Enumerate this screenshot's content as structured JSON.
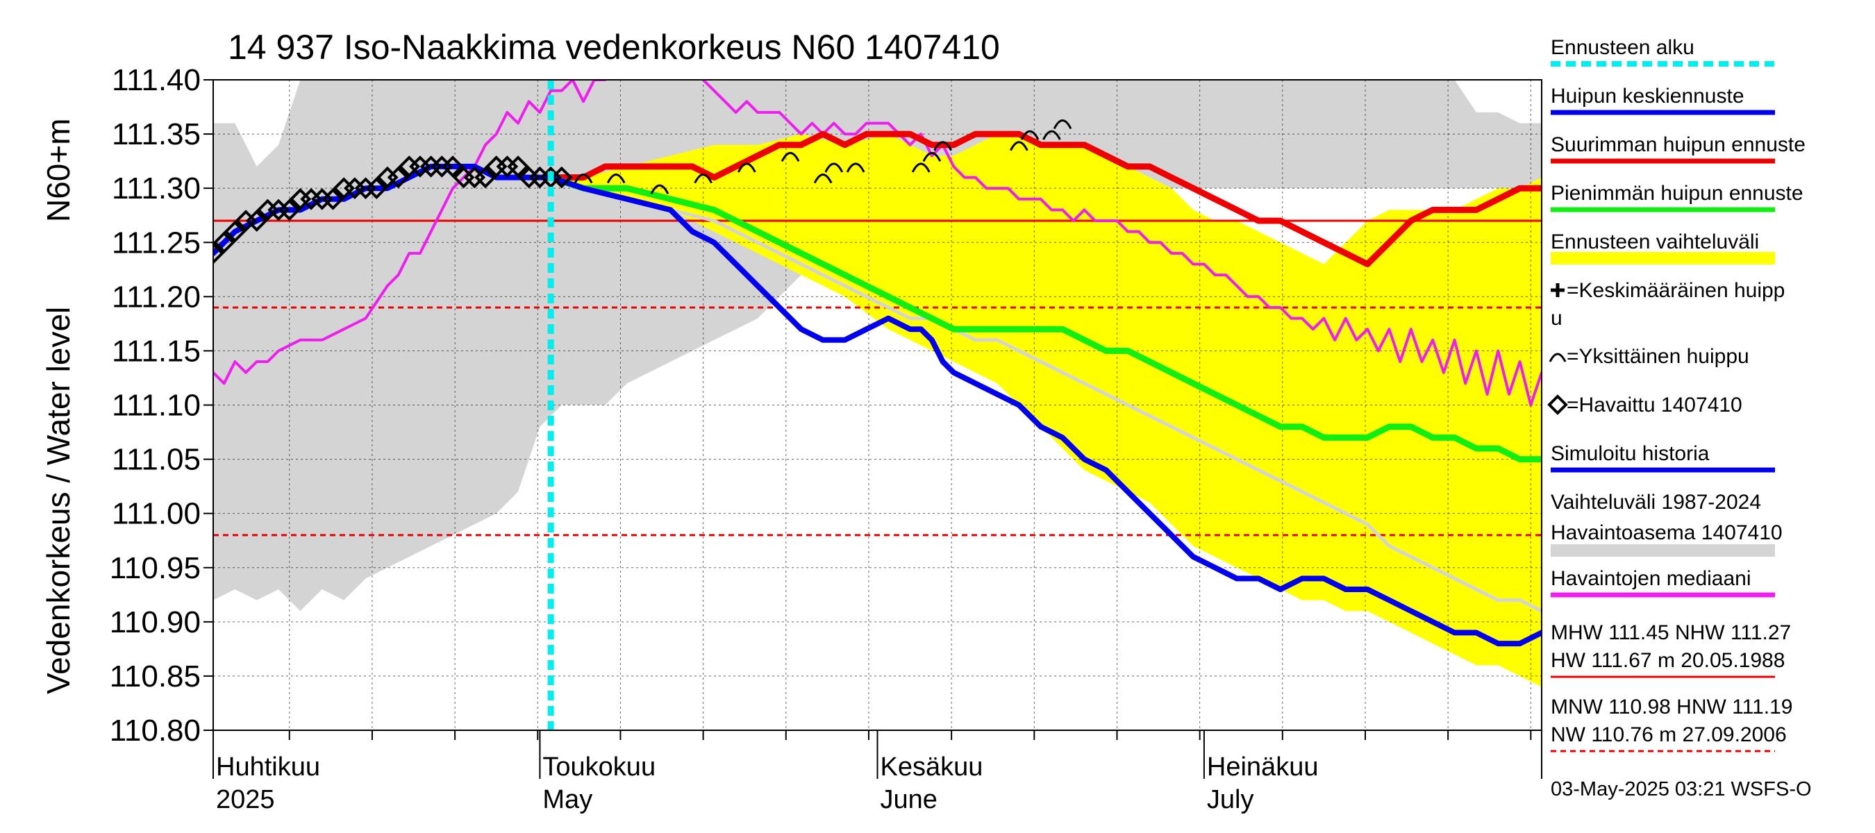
{
  "chart_data": {
    "type": "line",
    "title": "14 937 Iso-Naakkima vedenkorkeus N60 1407410",
    "ylabel_top": "N60+m",
    "ylabel_bottom": "Vedenkorkeus / Water level",
    "ylim": [
      110.8,
      111.4
    ],
    "xlim": [
      0,
      122
    ],
    "y_ticks": [
      "110.80",
      "110.85",
      "110.90",
      "110.95",
      "111.00",
      "111.05",
      "111.10",
      "111.15",
      "111.20",
      "111.25",
      "111.30",
      "111.35",
      "111.40"
    ],
    "grid": true,
    "legend_position": "right",
    "months": [
      {
        "fi": "Huhtikuu",
        "en": "2025",
        "day": 0
      },
      {
        "fi": "Toukokuu",
        "en": "May",
        "day": 30
      },
      {
        "fi": "Kesäkuu",
        "en": "June",
        "day": 61
      },
      {
        "fi": "Heinäkuu",
        "en": "July",
        "day": 91
      }
    ],
    "forecast_start_day": 31,
    "reference_lines": [
      {
        "label": "NHW",
        "value": 111.27,
        "style": "solid"
      },
      {
        "label": "HNW",
        "value": 111.19,
        "style": "dashed"
      },
      {
        "label": "MNW",
        "value": 110.98,
        "style": "dashed"
      }
    ],
    "history_band": {
      "x": [
        0,
        2,
        4,
        6,
        8,
        10,
        12,
        14,
        16,
        18,
        20,
        22,
        24,
        26,
        28,
        29,
        30,
        31,
        32,
        34,
        36,
        38,
        40,
        42,
        44,
        46,
        48,
        50,
        52,
        54,
        56,
        58,
        60,
        62,
        64,
        66,
        68,
        70,
        72,
        74,
        76,
        78,
        80,
        82,
        84,
        86,
        88,
        90,
        92,
        94,
        96,
        98,
        100,
        102,
        104,
        106,
        108,
        110,
        112,
        114,
        116,
        118,
        120,
        122
      ],
      "upper": [
        111.36,
        111.36,
        111.32,
        111.34,
        111.4,
        111.4,
        111.4,
        111.4,
        111.4,
        111.4,
        111.4,
        111.4,
        111.4,
        111.4,
        111.4,
        111.4,
        111.4,
        111.4,
        111.4,
        111.4,
        111.4,
        111.4,
        111.4,
        111.4,
        111.4,
        111.4,
        111.4,
        111.4,
        111.4,
        111.4,
        111.4,
        111.4,
        111.4,
        111.4,
        111.4,
        111.4,
        111.4,
        111.4,
        111.4,
        111.4,
        111.4,
        111.4,
        111.4,
        111.4,
        111.4,
        111.4,
        111.4,
        111.4,
        111.4,
        111.4,
        111.4,
        111.4,
        111.4,
        111.4,
        111.4,
        111.4,
        111.4,
        111.4,
        111.4,
        111.4,
        111.37,
        111.37,
        111.36,
        111.36
      ],
      "lower": [
        110.92,
        110.93,
        110.92,
        110.93,
        110.91,
        110.93,
        110.92,
        110.94,
        110.95,
        110.96,
        110.97,
        110.98,
        110.99,
        111.0,
        111.02,
        111.05,
        111.08,
        111.09,
        111.1,
        111.1,
        111.1,
        111.12,
        111.13,
        111.14,
        111.15,
        111.16,
        111.17,
        111.18,
        111.2,
        111.22,
        111.24,
        111.26,
        111.28,
        111.3,
        111.3,
        111.3,
        111.3,
        111.3,
        111.3,
        111.3,
        111.3,
        111.3,
        111.3,
        111.3,
        111.3,
        111.3,
        111.3,
        111.3,
        111.3,
        111.3,
        111.3,
        111.3,
        111.3,
        111.3,
        111.3,
        111.3,
        111.3,
        111.3,
        111.3,
        111.3,
        111.3,
        111.3,
        111.3,
        111.3
      ]
    },
    "forecast_band": {
      "x": [
        31,
        34,
        38,
        42,
        46,
        50,
        54,
        58,
        62,
        64,
        66,
        68,
        70,
        72,
        74,
        76,
        78,
        80,
        82,
        84,
        86,
        88,
        90,
        92,
        94,
        96,
        98,
        100,
        102,
        104,
        106,
        108,
        110,
        112,
        114,
        116,
        118,
        120,
        122
      ],
      "upper": [
        111.31,
        111.31,
        111.32,
        111.33,
        111.34,
        111.34,
        111.35,
        111.34,
        111.35,
        111.34,
        111.33,
        111.33,
        111.34,
        111.35,
        111.35,
        111.34,
        111.34,
        111.34,
        111.33,
        111.32,
        111.31,
        111.3,
        111.28,
        111.27,
        111.27,
        111.26,
        111.25,
        111.24,
        111.23,
        111.25,
        111.27,
        111.28,
        111.28,
        111.28,
        111.28,
        111.29,
        111.3,
        111.3,
        111.31
      ],
      "lower": [
        111.31,
        111.3,
        111.29,
        111.28,
        111.26,
        111.24,
        111.22,
        111.2,
        111.17,
        111.16,
        111.15,
        111.14,
        111.13,
        111.12,
        111.1,
        111.08,
        111.06,
        111.04,
        111.03,
        111.02,
        111.01,
        110.99,
        110.97,
        110.96,
        110.95,
        110.94,
        110.93,
        110.92,
        110.92,
        110.91,
        110.91,
        110.9,
        110.89,
        110.88,
        110.87,
        110.86,
        110.86,
        110.85,
        110.84
      ]
    },
    "series": [
      {
        "name": "Havaintojen mediaani",
        "color": "#ee1fee",
        "x": [
          0,
          1,
          2,
          3,
          4,
          5,
          6,
          8,
          10,
          12,
          14,
          16,
          17,
          18,
          19,
          20,
          21,
          22,
          23,
          24,
          25,
          26,
          27,
          28,
          29,
          30,
          31,
          32,
          33,
          34,
          35,
          36,
          37,
          38,
          39,
          40,
          41,
          42,
          43,
          44,
          45,
          46,
          47,
          48,
          49,
          50,
          51,
          52,
          53,
          54,
          55,
          56,
          57,
          58,
          59,
          60,
          61,
          62,
          63,
          64,
          65,
          66,
          67,
          68,
          69,
          70,
          71,
          72,
          73,
          74,
          75,
          76,
          77,
          78,
          79,
          80,
          81,
          82,
          83,
          84,
          85,
          86,
          87,
          88,
          89,
          90,
          91,
          92,
          93,
          94,
          95,
          96,
          97,
          98,
          99,
          100,
          101,
          102,
          103,
          104,
          105,
          106,
          107,
          108,
          109,
          110,
          111,
          112,
          113,
          114,
          115,
          116,
          117,
          118,
          119,
          120,
          121,
          122
        ],
        "y": [
          111.13,
          111.12,
          111.14,
          111.13,
          111.14,
          111.14,
          111.15,
          111.16,
          111.16,
          111.17,
          111.18,
          111.21,
          111.22,
          111.24,
          111.24,
          111.26,
          111.28,
          111.3,
          111.31,
          111.32,
          111.34,
          111.35,
          111.37,
          111.36,
          111.38,
          111.37,
          111.39,
          111.39,
          111.4,
          111.38,
          111.4,
          111.4,
          111.41,
          111.41,
          111.42,
          111.41,
          111.41,
          111.41,
          111.41,
          111.41,
          111.4,
          111.39,
          111.38,
          111.37,
          111.38,
          111.37,
          111.37,
          111.37,
          111.36,
          111.35,
          111.36,
          111.35,
          111.36,
          111.35,
          111.35,
          111.36,
          111.36,
          111.36,
          111.35,
          111.34,
          111.35,
          111.33,
          111.34,
          111.32,
          111.31,
          111.31,
          111.3,
          111.3,
          111.3,
          111.29,
          111.29,
          111.29,
          111.28,
          111.28,
          111.27,
          111.28,
          111.27,
          111.27,
          111.27,
          111.26,
          111.26,
          111.25,
          111.25,
          111.24,
          111.24,
          111.23,
          111.23,
          111.22,
          111.22,
          111.21,
          111.2,
          111.2,
          111.19,
          111.19,
          111.18,
          111.18,
          111.17,
          111.18,
          111.16,
          111.18,
          111.16,
          111.17,
          111.15,
          111.17,
          111.14,
          111.17,
          111.14,
          111.16,
          111.13,
          111.16,
          111.12,
          111.15,
          111.11,
          111.15,
          111.11,
          111.14,
          111.1,
          111.13
        ]
      },
      {
        "name": "Ennusteen vaihteluväli (harmaa)",
        "color": "#d4d4d4",
        "x": [
          31,
          34,
          38,
          42,
          46,
          50,
          54,
          58,
          62,
          64,
          66,
          68,
          70,
          72,
          74,
          76,
          78,
          80,
          82,
          84,
          86,
          88,
          90,
          92,
          94,
          96,
          98,
          100,
          102,
          104,
          106,
          108,
          110,
          112,
          114,
          116,
          118,
          120,
          122
        ],
        "y": [
          111.31,
          111.3,
          111.29,
          111.28,
          111.27,
          111.25,
          111.23,
          111.21,
          111.19,
          111.18,
          111.18,
          111.17,
          111.16,
          111.16,
          111.15,
          111.14,
          111.13,
          111.12,
          111.11,
          111.1,
          111.09,
          111.08,
          111.07,
          111.06,
          111.05,
          111.04,
          111.03,
          111.02,
          111.01,
          111.0,
          110.99,
          110.97,
          110.96,
          110.95,
          110.94,
          110.93,
          110.92,
          110.92,
          110.91
        ]
      },
      {
        "name": "Suurimman huipun ennuste",
        "color": "#ee0000",
        "x": [
          31,
          34,
          36,
          38,
          40,
          42,
          44,
          46,
          48,
          50,
          52,
          54,
          56,
          58,
          60,
          62,
          64,
          66,
          68,
          70,
          72,
          74,
          76,
          78,
          80,
          82,
          84,
          86,
          88,
          90,
          92,
          94,
          96,
          98,
          100,
          102,
          104,
          106,
          108,
          110,
          112,
          114,
          116,
          118,
          120,
          122
        ],
        "y": [
          111.31,
          111.31,
          111.32,
          111.32,
          111.32,
          111.32,
          111.32,
          111.31,
          111.32,
          111.33,
          111.34,
          111.34,
          111.35,
          111.34,
          111.35,
          111.35,
          111.35,
          111.34,
          111.34,
          111.35,
          111.35,
          111.35,
          111.34,
          111.34,
          111.34,
          111.33,
          111.32,
          111.32,
          111.31,
          111.3,
          111.29,
          111.28,
          111.27,
          111.27,
          111.26,
          111.25,
          111.24,
          111.23,
          111.25,
          111.27,
          111.28,
          111.28,
          111.28,
          111.29,
          111.3,
          111.3
        ]
      },
      {
        "name": "Pienimmän huipun ennuste",
        "color": "#11ee11",
        "x": [
          31,
          34,
          38,
          42,
          46,
          50,
          54,
          58,
          62,
          64,
          66,
          68,
          70,
          72,
          74,
          76,
          78,
          80,
          82,
          84,
          86,
          88,
          90,
          92,
          94,
          96,
          98,
          100,
          102,
          104,
          106,
          108,
          110,
          112,
          114,
          116,
          118,
          120,
          122
        ],
        "y": [
          111.31,
          111.3,
          111.3,
          111.29,
          111.28,
          111.26,
          111.24,
          111.22,
          111.2,
          111.19,
          111.18,
          111.17,
          111.17,
          111.17,
          111.17,
          111.17,
          111.17,
          111.16,
          111.15,
          111.15,
          111.14,
          111.13,
          111.12,
          111.11,
          111.1,
          111.09,
          111.08,
          111.08,
          111.07,
          111.07,
          111.07,
          111.08,
          111.08,
          111.07,
          111.07,
          111.06,
          111.06,
          111.05,
          111.05
        ]
      },
      {
        "name": "Huipun keskiennuste",
        "color": "#0000ee",
        "x": [
          31,
          34,
          38,
          42,
          44,
          46,
          48,
          50,
          52,
          54,
          56,
          58,
          60,
          62,
          64,
          65,
          66,
          67,
          68,
          70,
          72,
          74,
          76,
          78,
          80,
          82,
          84,
          86,
          88,
          90,
          92,
          94,
          96,
          98,
          100,
          102,
          104,
          106,
          108,
          110,
          112,
          114,
          116,
          118,
          120,
          122
        ],
        "y": [
          111.31,
          111.3,
          111.29,
          111.28,
          111.26,
          111.25,
          111.23,
          111.21,
          111.19,
          111.17,
          111.16,
          111.16,
          111.17,
          111.18,
          111.17,
          111.17,
          111.16,
          111.14,
          111.13,
          111.12,
          111.11,
          111.1,
          111.08,
          111.07,
          111.05,
          111.04,
          111.02,
          111.0,
          110.98,
          110.96,
          110.95,
          110.94,
          110.94,
          110.93,
          110.94,
          110.94,
          110.93,
          110.93,
          110.92,
          110.91,
          110.9,
          110.89,
          110.89,
          110.88,
          110.88,
          110.89
        ]
      },
      {
        "name": "Simuloitu historia",
        "color": "#0000ee",
        "x": [
          0,
          2,
          4,
          6,
          8,
          10,
          12,
          14,
          16,
          18,
          20,
          22,
          24,
          26,
          28,
          30,
          31
        ],
        "y": [
          111.24,
          111.26,
          111.27,
          111.28,
          111.28,
          111.29,
          111.29,
          111.3,
          111.3,
          111.31,
          111.32,
          111.32,
          111.32,
          111.31,
          111.31,
          111.31,
          111.31
        ]
      }
    ],
    "observed": {
      "name": "Havaittu 1407410",
      "x": [
        0,
        1,
        2,
        3,
        4,
        5,
        6,
        7,
        8,
        9,
        10,
        11,
        12,
        13,
        14,
        15,
        16,
        17,
        18,
        19,
        20,
        21,
        22,
        23,
        24,
        25,
        26,
        27,
        28,
        29,
        30,
        31,
        32
      ],
      "y": [
        111.24,
        111.25,
        111.26,
        111.27,
        111.27,
        111.28,
        111.28,
        111.28,
        111.29,
        111.29,
        111.29,
        111.29,
        111.3,
        111.3,
        111.3,
        111.3,
        111.31,
        111.31,
        111.32,
        111.32,
        111.32,
        111.32,
        111.32,
        111.31,
        111.31,
        111.31,
        111.32,
        111.32,
        111.32,
        111.31,
        111.31,
        111.31,
        111.31
      ]
    },
    "individual_peaks": {
      "x": [
        34,
        37,
        41,
        45,
        49,
        53,
        56,
        57,
        59,
        65,
        66,
        67,
        74,
        75,
        77,
        78
      ],
      "y": [
        111.31,
        111.31,
        111.3,
        111.31,
        111.32,
        111.33,
        111.31,
        111.32,
        111.32,
        111.32,
        111.33,
        111.34,
        111.34,
        111.35,
        111.35,
        111.36
      ]
    },
    "legend": [
      {
        "label": "Ennusteen alku",
        "color": "#00eeee",
        "style": "dotted",
        "type": "line"
      },
      {
        "label": "Huipun keskiennuste",
        "color": "#0000ee",
        "style": "solid",
        "type": "line"
      },
      {
        "label": "Suurimman huipun ennuste",
        "color": "#ee0000",
        "style": "solid",
        "type": "line"
      },
      {
        "label": "Pienimmän huipun ennuste",
        "color": "#11ee11",
        "style": "solid",
        "type": "line"
      },
      {
        "label": "Ennusteen vaihteluväli",
        "color": "#ffff00",
        "style": "solid",
        "type": "thick"
      },
      {
        "label": "=Keskimääräinen huipp",
        "label2": "u",
        "color": "#000000",
        "type": "plus"
      },
      {
        "label": "=Yksittäinen huippu",
        "color": "#000000",
        "type": "arc"
      },
      {
        "label": "=Havaittu 1407410",
        "color": "#000000",
        "type": "diamond"
      },
      {
        "label": "Simuloitu historia",
        "color": "#0000ee",
        "style": "solid",
        "type": "line"
      },
      {
        "label": "Vaihteluväli 1987-2024",
        "label2": " Havaintoasema 1407410",
        "color": "#d4d4d4",
        "type": "thick2"
      },
      {
        "label": "Havaintojen mediaani",
        "color": "#ee1fee",
        "style": "solid",
        "type": "line"
      },
      {
        "label": "MHW 111.45 NHW 111.27",
        "label2": "HW 111.67 m 20.05.1988",
        "color": "#ee0000",
        "style": "solid",
        "type": "line2"
      },
      {
        "label": "MNW 110.98 HNW 111.19",
        "label2": "NW 110.76 m 27.09.2006",
        "color": "#ee0000",
        "style": "dashed",
        "type": "line2"
      }
    ],
    "footer": "03-May-2025 03:21 WSFS-O"
  }
}
